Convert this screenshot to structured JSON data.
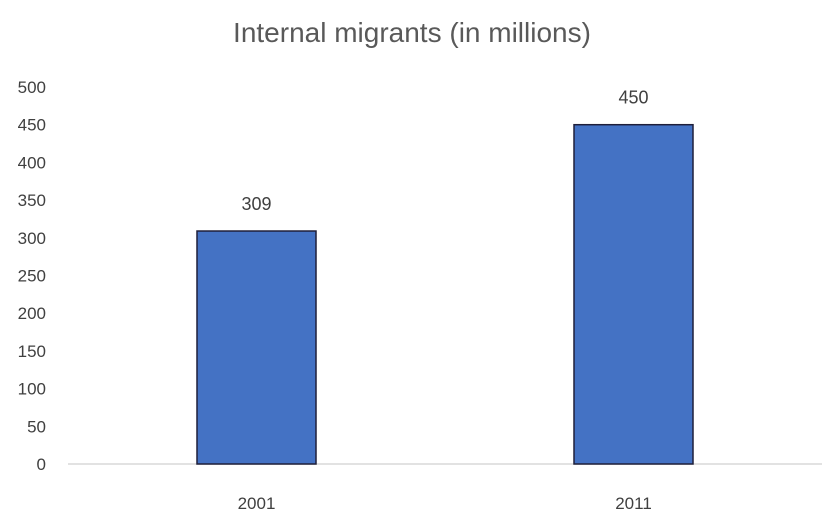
{
  "chart_data": {
    "type": "bar",
    "title": "Internal migrants (in millions)",
    "categories": [
      "2001",
      "2011"
    ],
    "values": [
      309,
      450
    ],
    "data_labels": [
      "309",
      "450"
    ],
    "ylim": [
      0,
      500
    ],
    "yticks": [
      0,
      50,
      100,
      150,
      200,
      250,
      300,
      350,
      400,
      450,
      500
    ],
    "ytick_labels": [
      "0",
      "50",
      "100",
      "150",
      "200",
      "250",
      "300",
      "350",
      "400",
      "450",
      "500"
    ],
    "grid": false,
    "legend": "none",
    "bar_color": "#4472C4",
    "bar_edge_color": "#1F1F3A"
  }
}
